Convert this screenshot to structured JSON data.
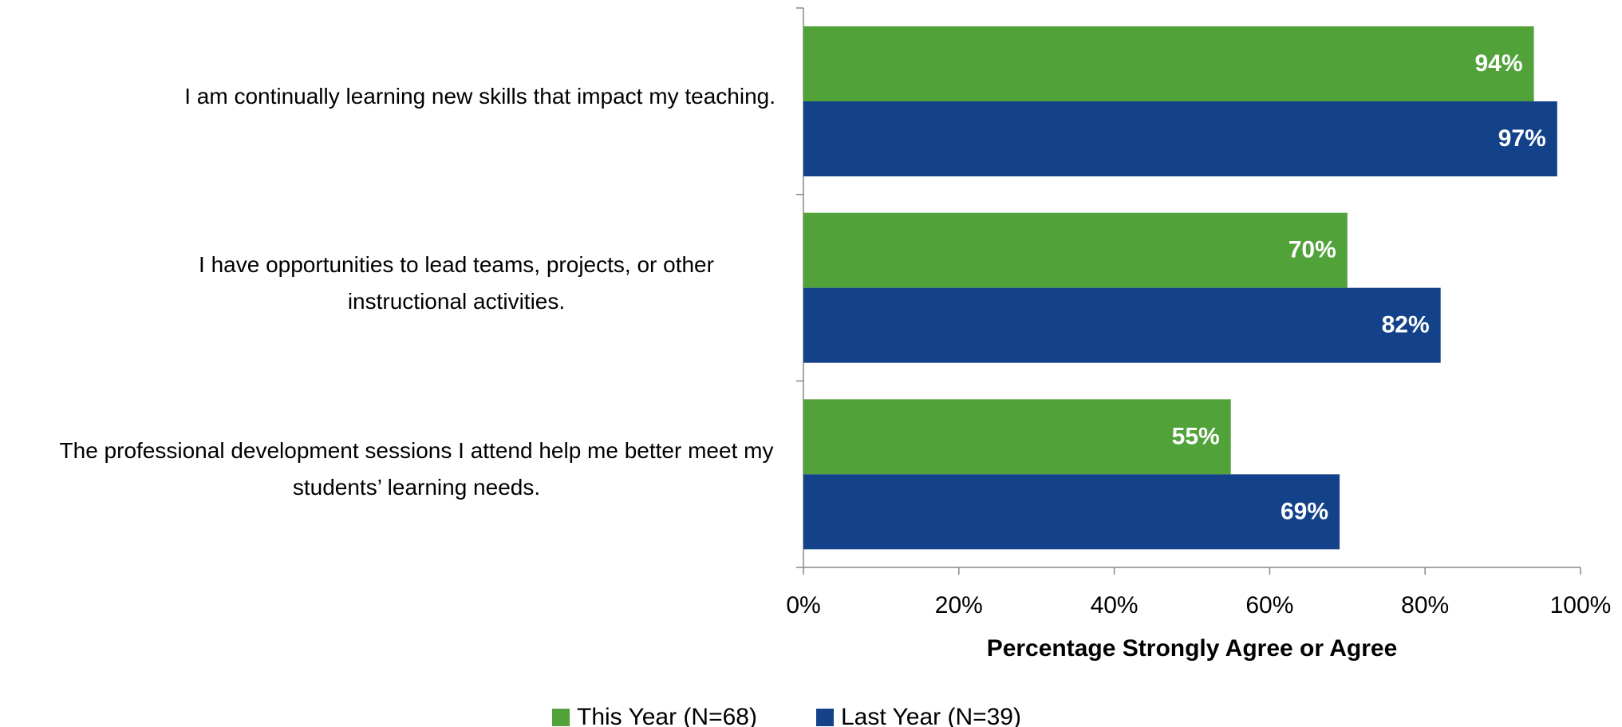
{
  "chart_data": {
    "type": "bar",
    "orientation": "horizontal",
    "categories": [
      "I am continually learning new skills that impact my teaching.",
      "I have opportunities to lead teams, projects, or other instructional activities.",
      "The professional development sessions I attend help me better meet my students’ learning needs."
    ],
    "series": [
      {
        "name": "This Year (N=68)",
        "color": "#52a23a",
        "values": [
          94,
          70,
          55
        ],
        "value_labels": [
          "94%",
          "70%",
          "55%"
        ]
      },
      {
        "name": "Last Year (N=39)",
        "color": "#13428a",
        "values": [
          97,
          82,
          69
        ],
        "value_labels": [
          "97%",
          "82%",
          "69%"
        ]
      }
    ],
    "xlabel": "Percentage Strongly Agree or Agree",
    "xlim": [
      0,
      100
    ],
    "xticks": [
      {
        "value": 0,
        "label": "0%"
      },
      {
        "value": 20,
        "label": "20%"
      },
      {
        "value": 40,
        "label": "40%"
      },
      {
        "value": 60,
        "label": "60%"
      },
      {
        "value": 80,
        "label": "80%"
      },
      {
        "value": 100,
        "label": "100%"
      }
    ],
    "legend": "bottom"
  }
}
